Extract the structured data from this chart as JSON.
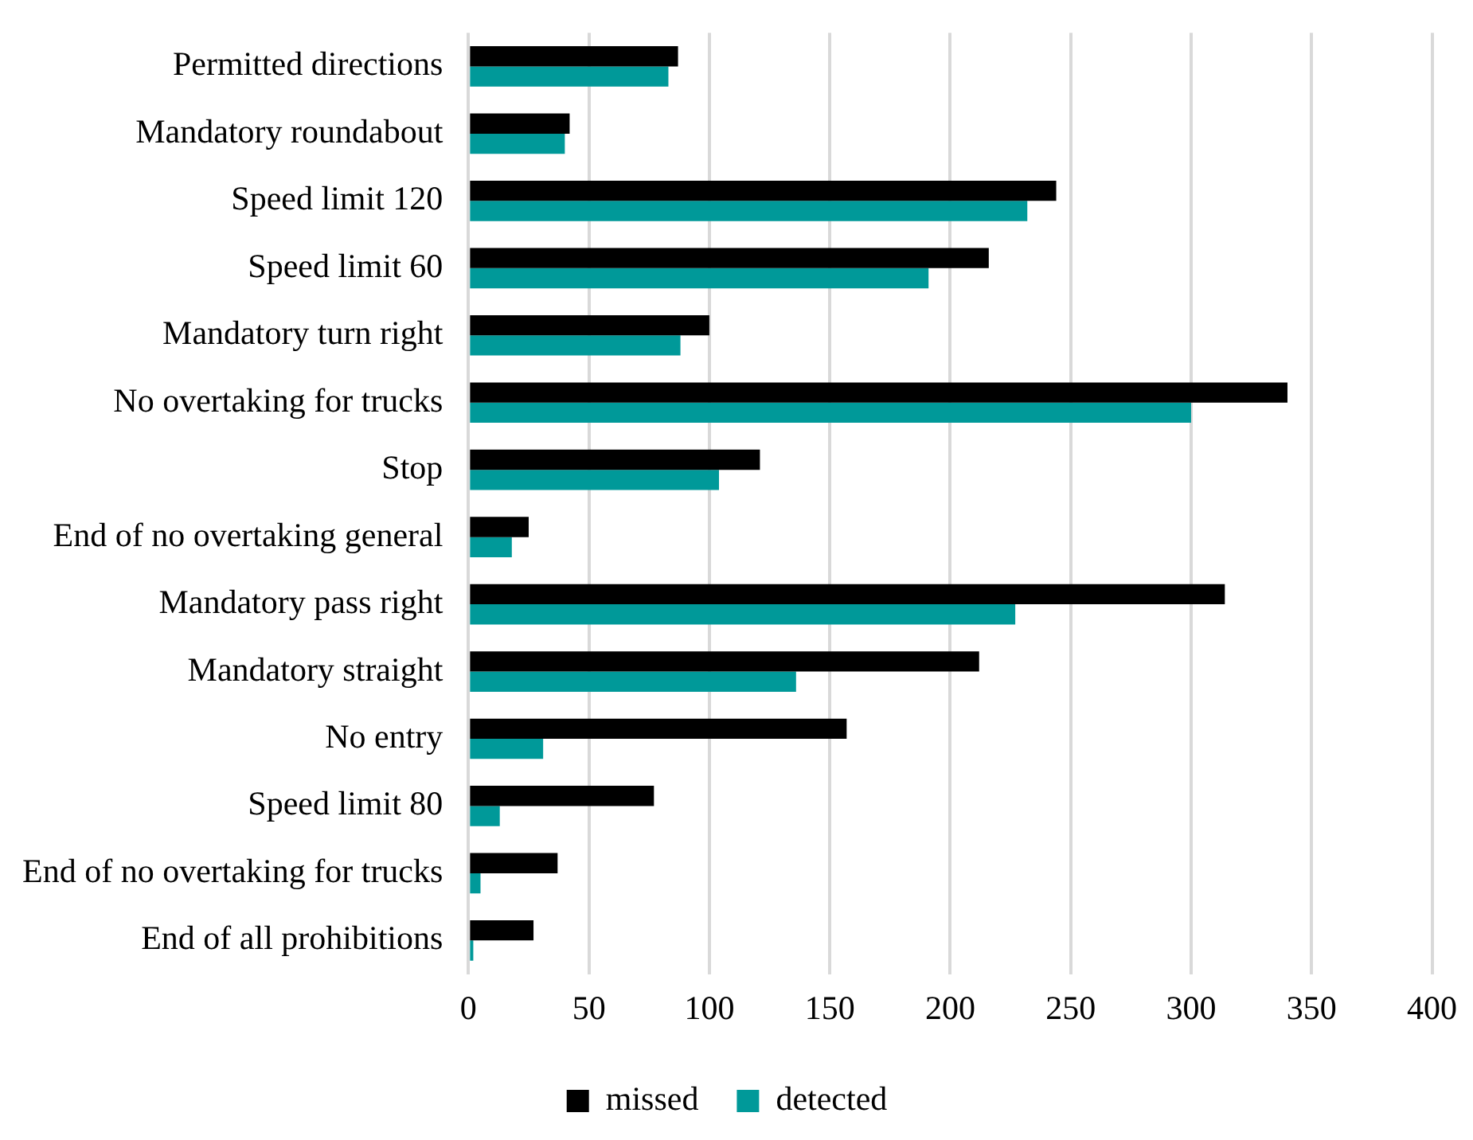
{
  "chart_data": {
    "type": "bar",
    "orientation": "horizontal",
    "categories": [
      "Permitted directions",
      "Mandatory roundabout",
      "Speed limit 120",
      "Speed limit 60",
      "Mandatory turn right",
      "No overtaking for trucks",
      "Stop",
      "End of no overtaking general",
      "Mandatory pass right",
      "Mandatory straight",
      "No entry",
      "Speed limit 80",
      "End of no overtaking for trucks",
      "End of all prohibitions"
    ],
    "series": [
      {
        "name": "missed",
        "color": "#000000",
        "values": [
          87,
          42,
          244,
          216,
          100,
          340,
          121,
          25,
          314,
          212,
          157,
          77,
          37,
          27
        ]
      },
      {
        "name": "detected",
        "color": "#009999",
        "values": [
          83,
          40,
          232,
          191,
          88,
          300,
          104,
          18,
          227,
          136,
          31,
          13,
          5,
          2
        ]
      }
    ],
    "xlim": [
      0,
      400
    ],
    "xticks": [
      0,
      50,
      100,
      150,
      200,
      250,
      300,
      350,
      400
    ],
    "grid": "x",
    "legend": "bottom"
  }
}
